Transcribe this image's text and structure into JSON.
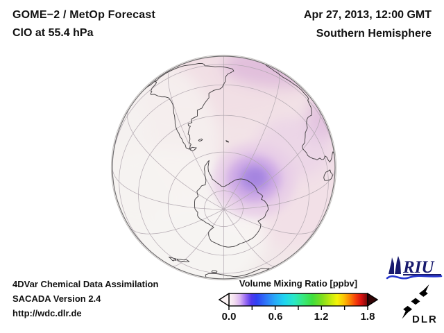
{
  "header": {
    "product": "GOME−2 / MetOp Forecast",
    "species_level": "ClO at 55.4 hPa",
    "datetime": "Apr 27, 2013, 12:00 GMT",
    "region": "Southern Hemisphere"
  },
  "footer": {
    "line1": "4DVar Chemical Data Assimilation",
    "line2": "SACADA Version 2.4",
    "line3": "http://wdc.dlr.de"
  },
  "colorbar": {
    "title": "Volume Mixing Ratio [ppbv]",
    "min": 0.0,
    "max": 1.8,
    "tick_values": [
      0,
      0.3,
      0.6,
      0.9,
      1.2,
      1.5,
      1.8
    ],
    "labels": [
      "0.0",
      "0.6",
      "1.2",
      "1.8"
    ],
    "label_values": [
      0,
      0.6,
      1.2,
      1.8
    ],
    "left_arrow_color": "#fcf4f5",
    "right_arrow_color": "#330406",
    "gradient": [
      {
        "p": 0,
        "c": "#fdf7f7"
      },
      {
        "p": 0.04,
        "c": "#f3ddf0"
      },
      {
        "p": 0.08,
        "c": "#d9b4f2"
      },
      {
        "p": 0.12,
        "c": "#9a6cf2"
      },
      {
        "p": 0.16,
        "c": "#5138ec"
      },
      {
        "p": 0.2,
        "c": "#2e40f2"
      },
      {
        "p": 0.26,
        "c": "#2e70f8"
      },
      {
        "p": 0.33,
        "c": "#28a8f8"
      },
      {
        "p": 0.4,
        "c": "#1ed4f0"
      },
      {
        "p": 0.47,
        "c": "#2ae8c6"
      },
      {
        "p": 0.54,
        "c": "#38e878"
      },
      {
        "p": 0.6,
        "c": "#3ede3e"
      },
      {
        "p": 0.67,
        "c": "#7ede1e"
      },
      {
        "p": 0.73,
        "c": "#c0ea10"
      },
      {
        "p": 0.78,
        "c": "#f4f408"
      },
      {
        "p": 0.83,
        "c": "#fbc105"
      },
      {
        "p": 0.875,
        "c": "#fb7e04"
      },
      {
        "p": 0.915,
        "c": "#f53c0a"
      },
      {
        "p": 0.955,
        "c": "#d81010"
      },
      {
        "p": 1,
        "c": "#6e0909"
      }
    ]
  },
  "globe": {
    "palette": {
      "base": "#f2edeb",
      "white": "#f7f4f2",
      "haze": "#f2dbe3",
      "band": "#dcb4da",
      "halo": "#e7cce8",
      "mid": "#cda9e6",
      "core": "#ad8ce2",
      "core2": "#a383e0",
      "graticule": "#b2a8b0",
      "coast": "#3d3a3c",
      "limb": "#6f6d6e",
      "outer_ring": "#c6c2c0"
    }
  },
  "logos": {
    "riu": "RIU",
    "dlr": "DLR",
    "riu_navy": "#181a6e",
    "riu_wave_blue": "#2737cf"
  },
  "chart_data": {
    "type": "heatmap",
    "title": "GOME−2 / MetOp Forecast — ClO at 55.4 hPa",
    "datetime": "Apr 27, 2013, 12:00 GMT",
    "region": "Southern Hemisphere orthographic globe (South Atlantic view: South America, Africa, Antarctica visible)",
    "colorbar_title": "Volume Mixing Ratio [ppbv]",
    "scale_range": [
      0.0,
      1.8
    ],
    "scale_ticks": [
      0.0,
      0.6,
      1.2,
      1.8
    ],
    "features": [
      {
        "name": "ClO enhancement maximum",
        "approx_location": "≈65°S near 0–20°E, northeast of Antarctica",
        "approx_value_ppbv": 0.2
      },
      {
        "name": "secondary enhancement band",
        "approx_location": "equatorial band near top limb and near 10°S at eastern limb",
        "approx_value_ppbv": 0.12
      },
      {
        "name": "background field",
        "approx_location": "most of hemisphere",
        "approx_value_ppbv": 0.03
      }
    ]
  }
}
